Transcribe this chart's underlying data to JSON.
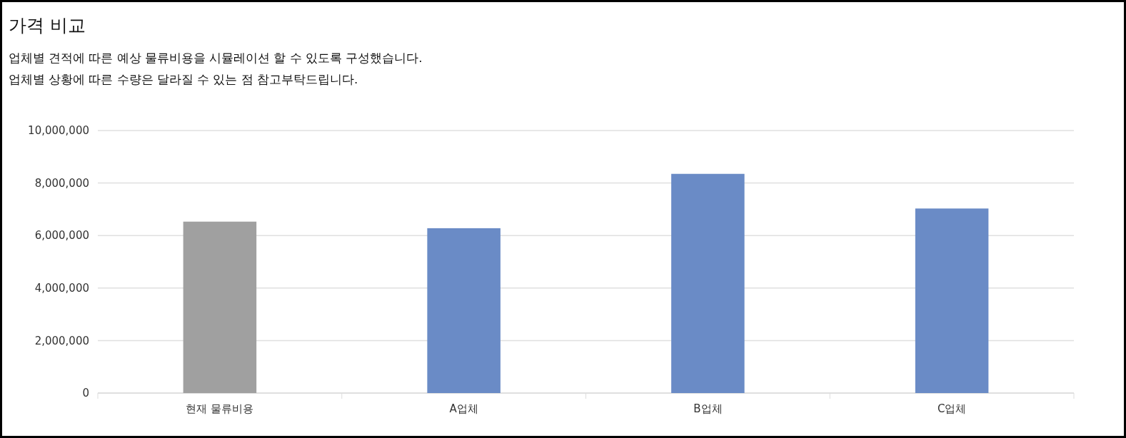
{
  "chart_data": {
    "type": "bar",
    "title": "가격 비교",
    "subtitle": "업체별 견적에 따른 예상 물류비용을 시뮬레이션 할 수 있도록 구성했습니다.\n업체별 상황에 따른 수량은 달라질 수 있는 점 참고부탁드립니다.",
    "categories": [
      "현재 물류비용",
      "A업체",
      "B업체",
      "C업체"
    ],
    "values": [
      6530000,
      6280000,
      8350000,
      7030000
    ],
    "colors": [
      "#a0a0a0",
      "#6a8bc6",
      "#6a8bc6",
      "#6a8bc6"
    ],
    "ylim": [
      0,
      10000000
    ],
    "yticks": [
      0,
      {
        "value": 2000000,
        "label": "2,000,000"
      },
      {
        "value": 4000000,
        "label": "4,000,000"
      },
      {
        "value": 6000000,
        "label": "6,000,000"
      },
      {
        "value": 8000000,
        "label": "8,000,000"
      },
      {
        "value": 10000000,
        "label": "10,000,000"
      }
    ],
    "grid": "y"
  }
}
